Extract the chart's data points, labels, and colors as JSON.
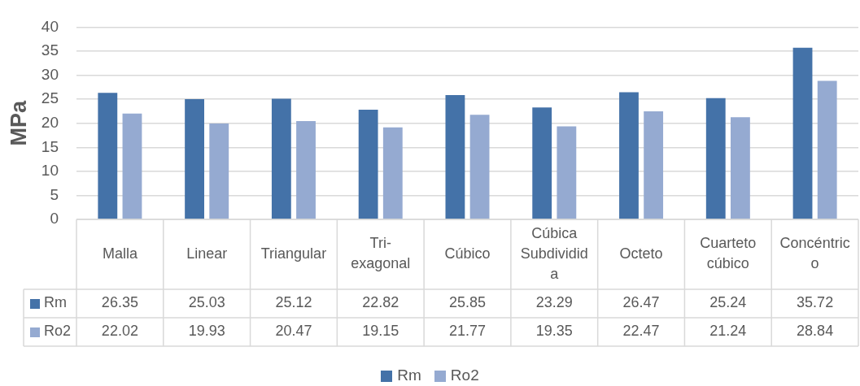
{
  "chart_data": {
    "type": "bar",
    "ylabel": "MPa",
    "categories": [
      "Malla",
      "Linear",
      "Triangular",
      "Tri-exagonal",
      "Cúbico",
      "Cúbica Subdividida",
      "Octeto",
      "Cuarteto cúbico",
      "Concéntrico"
    ],
    "series": [
      {
        "name": "Rm",
        "color": "#4472a8",
        "values": [
          26.35,
          25.03,
          25.12,
          22.82,
          25.85,
          23.29,
          26.47,
          25.24,
          35.72
        ]
      },
      {
        "name": "Ro2",
        "color": "#95aad1",
        "values": [
          22.02,
          19.93,
          20.47,
          19.15,
          21.77,
          19.35,
          22.47,
          21.24,
          28.84
        ]
      }
    ],
    "ylim": [
      0,
      40
    ],
    "yticks": [
      0,
      5,
      10,
      15,
      20,
      25,
      30,
      35,
      40
    ],
    "grid": "y",
    "legend": "bottom",
    "data_labels": true
  }
}
